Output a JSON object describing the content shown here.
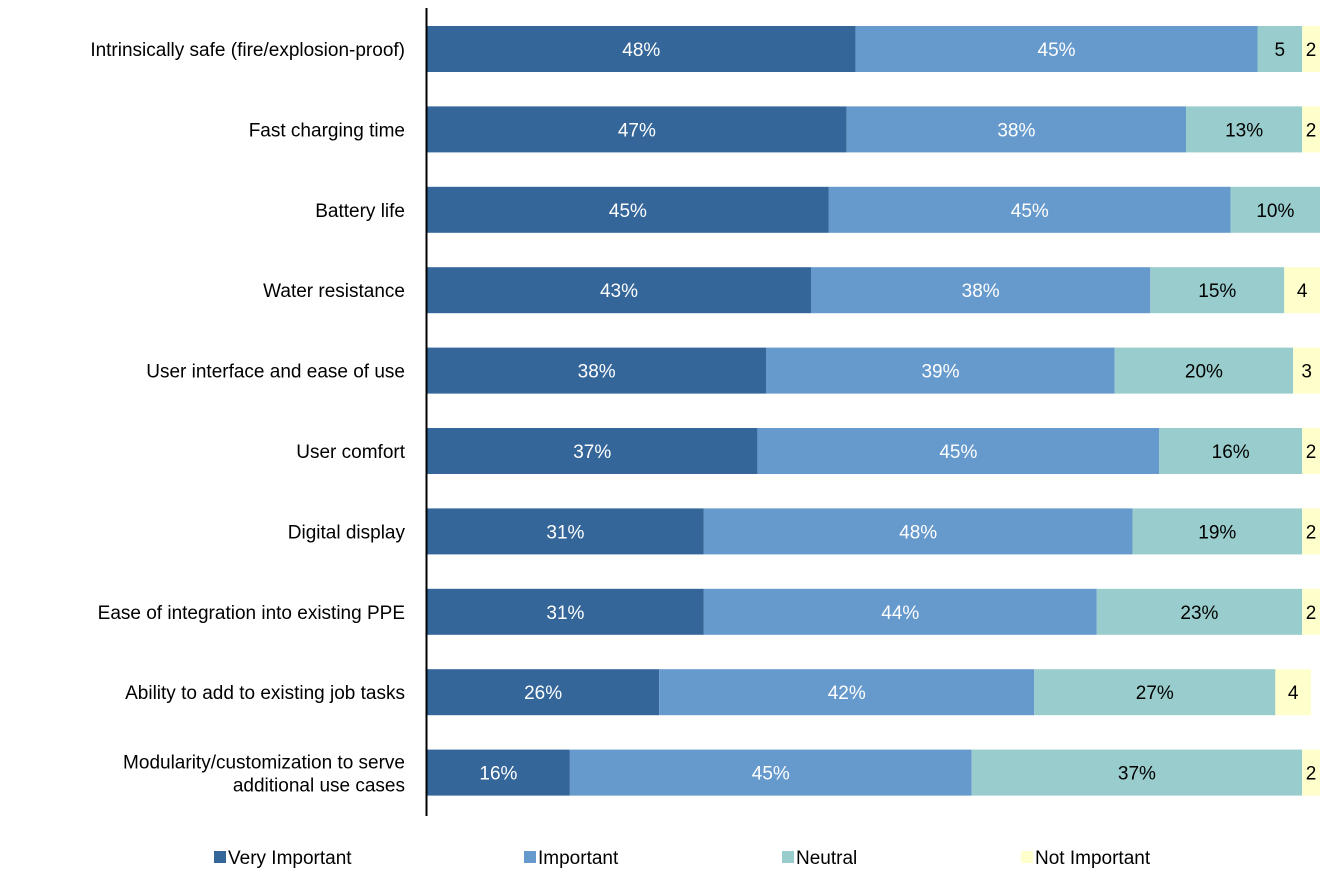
{
  "chart_data": {
    "type": "bar",
    "orientation": "horizontal",
    "stacked": true,
    "categories": [
      "Intrinsically safe (fire/explosion-proof)",
      "Fast charging time",
      "Battery life",
      "Water resistance",
      "User interface and ease of use",
      "User comfort ",
      "Digital display",
      "Ease of integration into existing PPE",
      "Ability to add to existing job tasks",
      "Modularity/customization to serve additional use cases"
    ],
    "series": [
      {
        "name": "Very Important",
        "color": "#346699",
        "values": [
          48,
          47,
          45,
          43,
          38,
          37,
          31,
          31,
          26,
          16
        ],
        "labels": [
          "48%",
          "47%",
          "45%",
          "43%",
          "38%",
          "37%",
          "31%",
          "31%",
          "26%",
          "16%"
        ]
      },
      {
        "name": "Important",
        "color": "#6699cc",
        "values": [
          45,
          38,
          45,
          38,
          39,
          45,
          48,
          44,
          42,
          45
        ],
        "labels": [
          "45%",
          "38%",
          "45%",
          "38%",
          "39%",
          "45%",
          "48%",
          "44%",
          "42%",
          "45%"
        ]
      },
      {
        "name": "Neutral",
        "color": "#99cccc",
        "values": [
          5,
          13,
          10,
          15,
          20,
          16,
          19,
          23,
          27,
          37
        ],
        "labels": [
          "5",
          "13%",
          "10%",
          "15%",
          "20%",
          "16%",
          "19%",
          "23%",
          "27%",
          "37%"
        ]
      },
      {
        "name": "Not Important",
        "color": "#ffffcc",
        "values": [
          2,
          2,
          0,
          4,
          3,
          2,
          2,
          2,
          4,
          2
        ],
        "labels": [
          "2",
          "2",
          "",
          "4",
          "3",
          "2",
          "2",
          "2",
          "4",
          "2"
        ]
      }
    ],
    "xlim": [
      0,
      100
    ],
    "title": "",
    "xlabel": "",
    "ylabel": "",
    "legend": "bottom",
    "grid": false
  }
}
